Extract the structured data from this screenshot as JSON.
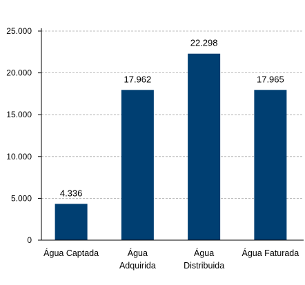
{
  "chart_data": {
    "type": "bar",
    "categories": [
      [
        "Água Captada"
      ],
      [
        "Água",
        "Adquirida"
      ],
      [
        "Água",
        "Distribuida"
      ],
      [
        "Água Faturada"
      ]
    ],
    "values": [
      4336,
      17962,
      22298,
      17965
    ],
    "value_labels": [
      "4.336",
      "17.962",
      "22.298",
      "17.965"
    ],
    "yticks": [
      0,
      5000,
      10000,
      15000,
      20000,
      25000
    ],
    "ytick_labels": [
      "0",
      "5.000",
      "10.000",
      "15.000",
      "20.000",
      "25.000"
    ],
    "ylim": [
      0,
      25000
    ],
    "grid": true,
    "bar_color": "#003f72",
    "grid_color": "#a6a6a6"
  }
}
